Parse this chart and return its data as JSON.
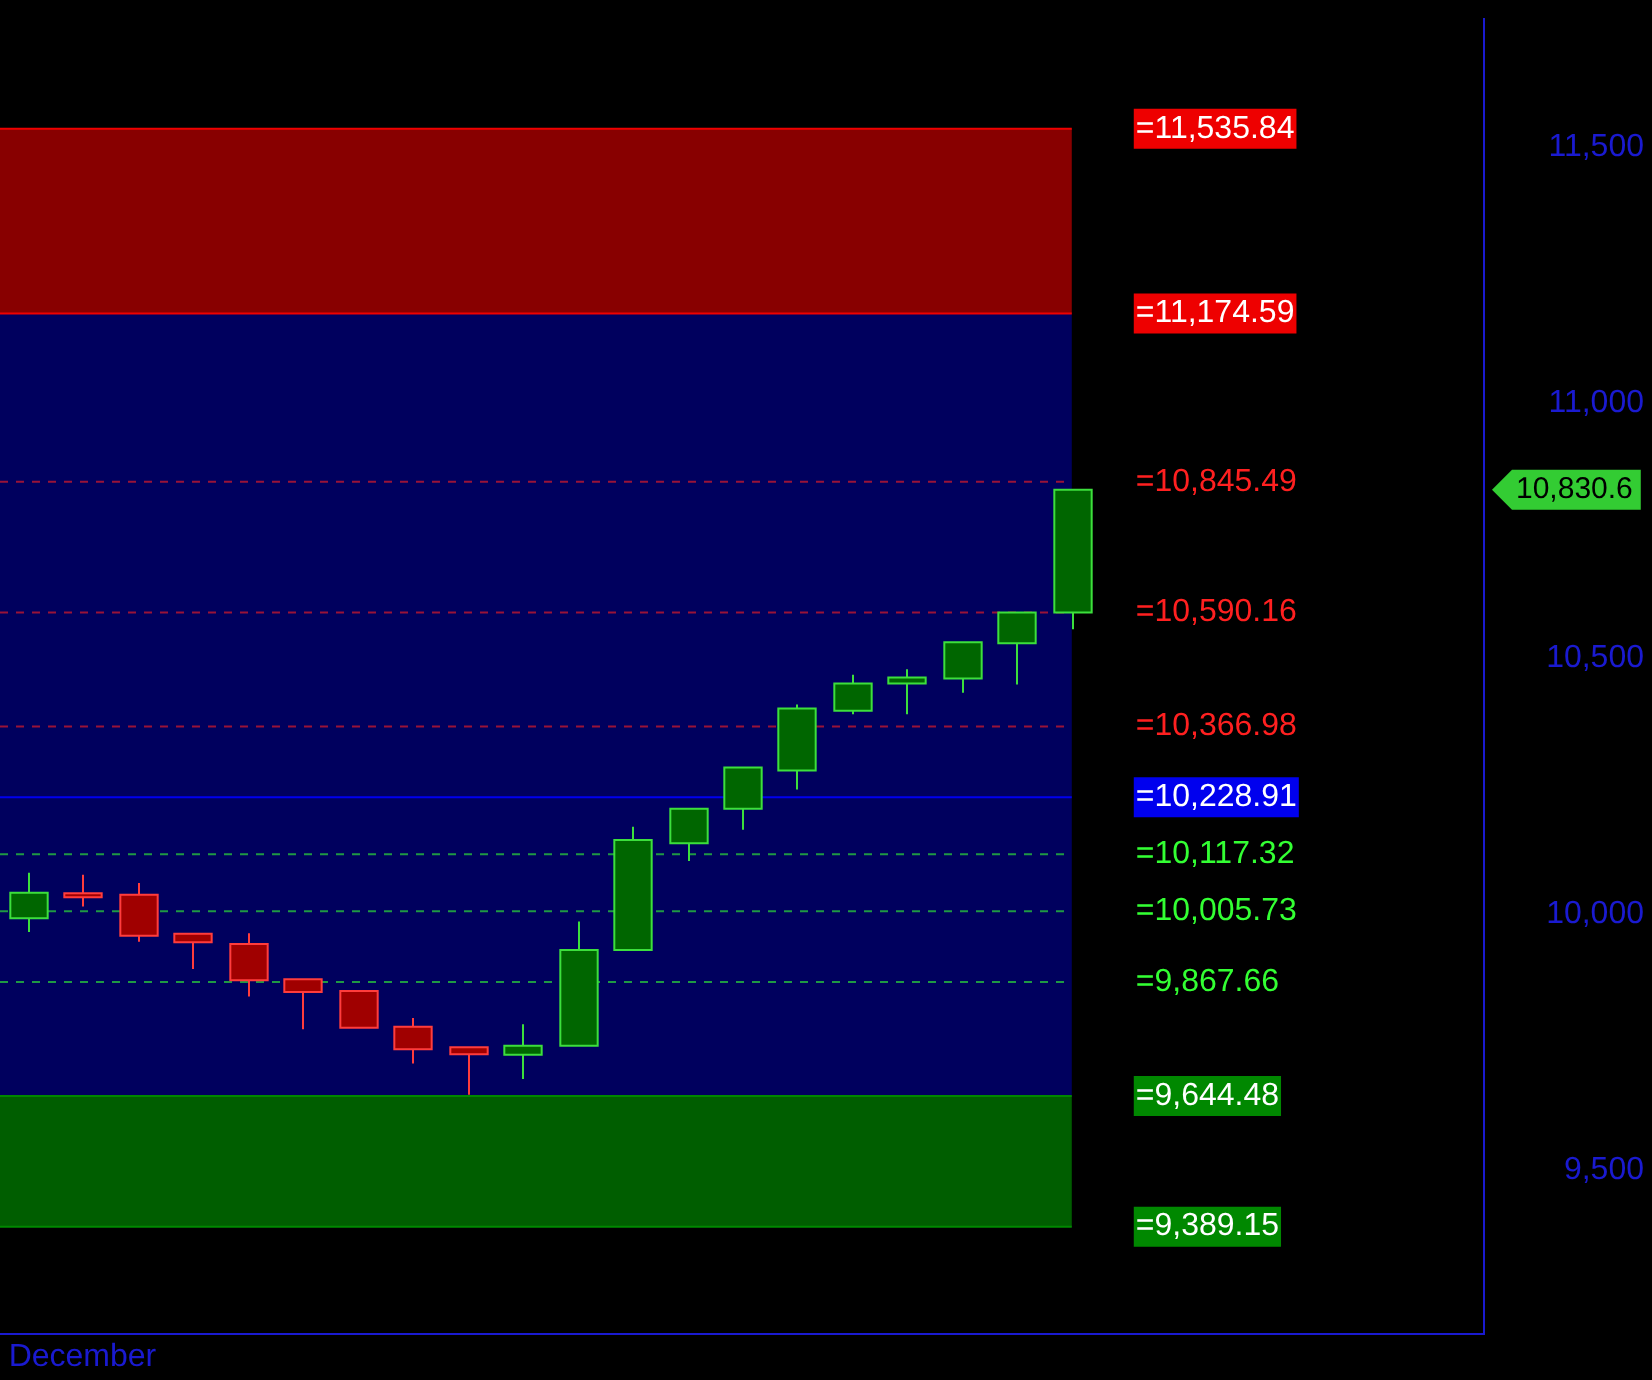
{
  "chart_data": {
    "type": "candlestick",
    "categories": [
      null,
      "December",
      null,
      null,
      null,
      null,
      null,
      null,
      null,
      null,
      null,
      null,
      null,
      null,
      null,
      null,
      null,
      null,
      null,
      null,
      null,
      null,
      null,
      null,
      null,
      null,
      null
    ],
    "ohlc": [
      [
        9992,
        10081,
        9965,
        10042
      ],
      [
        10041,
        10077,
        10015,
        10036
      ],
      [
        10038,
        10061,
        9946,
        9958
      ],
      [
        9962,
        9962,
        9893,
        9945
      ],
      [
        9942,
        9963,
        9839,
        9871
      ],
      [
        9873,
        9873,
        9775,
        9848
      ],
      [
        9850,
        9850,
        9778,
        9778
      ],
      [
        9780,
        9797,
        9708,
        9736
      ],
      [
        9740,
        9740,
        9647,
        9726
      ],
      [
        9725,
        9785,
        9678,
        9743
      ],
      [
        9743,
        9986,
        9743,
        9930
      ],
      [
        9930,
        10171,
        9930,
        10145
      ],
      [
        10139,
        10206,
        10104,
        10206
      ],
      [
        10206,
        10287,
        10165,
        10287
      ],
      [
        10281,
        10410,
        10244,
        10402
      ],
      [
        10398,
        10468,
        10391,
        10451
      ],
      [
        10451,
        10479,
        10391,
        10463
      ],
      [
        10461,
        10532,
        10433,
        10532
      ],
      [
        10530,
        10590,
        10449,
        10590
      ],
      [
        10590,
        10830,
        10557,
        10830
      ],
      null,
      null,
      null,
      null,
      null,
      null,
      null
    ],
    "colors": [
      "#006600",
      "#a00000",
      "#a00000",
      "#a00000",
      "#a00000",
      "#a00000",
      "#a00000",
      "#a00000",
      "#a00000",
      "#006600",
      "#006600",
      "#006600",
      "#006600",
      "#006600",
      "#006600",
      "#006600",
      "#006600",
      "#006600",
      "#006600",
      "#006600",
      null,
      null,
      null,
      null,
      null,
      null,
      null
    ],
    "ylim": [
      9180,
      11750
    ],
    "yticks": [
      {
        "value": 9500,
        "label": "9,500"
      },
      {
        "value": 10000,
        "label": "10,000"
      },
      {
        "value": 10500,
        "label": "10,500"
      },
      {
        "value": 11000,
        "label": "11,000"
      },
      {
        "value": 11500,
        "label": "11,500"
      }
    ],
    "bands": [
      {
        "axis": "y",
        "from": 11174.59,
        "to": 11535.84,
        "color": "#880000"
      },
      {
        "axis": "y",
        "from": 9644.48,
        "to": 11174.59,
        "color": "#00005e"
      },
      {
        "axis": "y",
        "from": 9389.15,
        "to": 9644.48,
        "color": "#005e00"
      }
    ],
    "ref_lines": [
      {
        "axis": "y",
        "value": 11535.84,
        "label": "=11,535.84",
        "color": "#ee0000",
        "line_style": "solid"
      },
      {
        "axis": "y",
        "value": 11174.59,
        "label": "=11,174.59",
        "color": "#ee0000",
        "line_style": "solid"
      },
      {
        "axis": "y",
        "value": 10845.49,
        "label": "=10,845.49",
        "color": "#ff2020",
        "line_style": "dashed"
      },
      {
        "axis": "y",
        "value": 10590.16,
        "label": "=10,590.16",
        "color": "#ff2020",
        "line_style": "dashed"
      },
      {
        "axis": "y",
        "value": 10366.98,
        "label": "=10,366.98",
        "color": "#ff2020",
        "line_style": "dashed"
      },
      {
        "axis": "y",
        "value": 10228.91,
        "label": "=10,228.91",
        "color": "#0000ee",
        "line_style": "solid"
      },
      {
        "axis": "y",
        "value": 10117.32,
        "label": "=10,117.32",
        "color": "#33ff33",
        "line_style": "dashed"
      },
      {
        "axis": "y",
        "value": 10005.73,
        "label": "=10,005.73",
        "color": "#33ff33",
        "line_style": "dashed"
      },
      {
        "axis": "y",
        "value": 9867.66,
        "label": "=9,867.66",
        "color": "#33ff33",
        "line_style": "dashed"
      },
      {
        "axis": "y",
        "value": 9644.48,
        "label": "=9,644.48",
        "color": "#008800",
        "line_style": "solid"
      },
      {
        "axis": "y",
        "value": 9389.15,
        "label": "=9,389.15",
        "color": "#008800",
        "line_style": "solid"
      }
    ],
    "annotations": [
      "10,830.6"
    ],
    "grid": false
  }
}
